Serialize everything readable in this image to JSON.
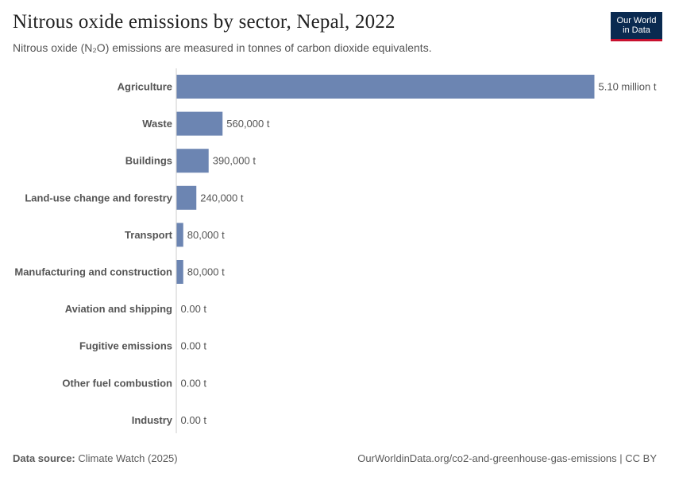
{
  "header": {
    "title": "Nitrous oxide emissions by sector, Nepal, 2022",
    "subtitle": "Nitrous oxide (N₂O) emissions are measured in tonnes of carbon dioxide equivalents.",
    "logo_line1": "Our World",
    "logo_line2": "in Data"
  },
  "footer": {
    "source_label": "Data source:",
    "source_value": "Climate Watch (2025)",
    "url_license": "OurWorldinData.org/co2-and-greenhouse-gas-emissions | CC BY"
  },
  "colors": {
    "bar": "#6c85b2",
    "axis": "#cccccc",
    "logo_bg": "#0a2a50",
    "logo_accent": "#c8102e"
  },
  "chart_data": {
    "type": "bar",
    "orientation": "horizontal",
    "title": "Nitrous oxide emissions by sector, Nepal, 2022",
    "unit": "t",
    "categories": [
      "Agriculture",
      "Waste",
      "Buildings",
      "Land-use change and forestry",
      "Transport",
      "Manufacturing and construction",
      "Aviation and shipping",
      "Fugitive emissions",
      "Other fuel combustion",
      "Industry"
    ],
    "values": [
      5100000,
      560000,
      390000,
      240000,
      80000,
      80000,
      0,
      0,
      0,
      0
    ],
    "value_labels": [
      "5.10 million t",
      "560,000 t",
      "390,000 t",
      "240,000 t",
      "80,000 t",
      "80,000 t",
      "0.00 t",
      "0.00 t",
      "0.00 t",
      "0.00 t"
    ],
    "xlim": [
      0,
      5100000
    ],
    "grid": false,
    "legend": "none"
  }
}
